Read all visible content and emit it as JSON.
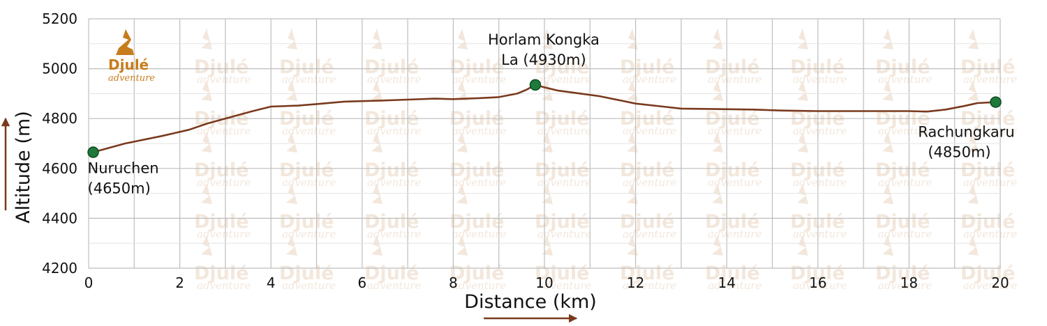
{
  "chart_data": {
    "type": "line",
    "xlabel": "Distance (km)",
    "ylabel": "Altitude (m)",
    "xlim": [
      0,
      20
    ],
    "ylim": [
      4200,
      5200
    ],
    "xticks": [
      0,
      2,
      4,
      6,
      8,
      10,
      12,
      14,
      16,
      18,
      20
    ],
    "yticks": [
      4200,
      4400,
      4600,
      4800,
      5000,
      5200
    ],
    "grid": true,
    "colors": {
      "line": "#7a3a1e",
      "marker": "#1f7a3a",
      "arrow": "#7a3a1e",
      "grid": "#bdbdbd"
    },
    "series": [
      {
        "x": [
          0.1,
          0.8,
          1.6,
          2.2,
          2.6,
          3.2,
          3.6,
          4.0,
          4.6,
          5.0,
          5.6,
          6.4,
          7.0,
          7.6,
          8.0,
          8.6,
          9.0,
          9.4,
          9.6,
          9.8,
          10.0,
          10.3,
          10.8,
          11.2,
          11.6,
          12.0,
          12.6,
          13.0,
          13.8,
          14.6,
          15.2,
          16.0,
          16.8,
          17.6,
          18.0,
          18.4,
          18.8,
          19.2,
          19.5,
          19.9
        ],
        "y": [
          4665,
          4700,
          4730,
          4755,
          4780,
          4810,
          4830,
          4848,
          4852,
          4858,
          4868,
          4872,
          4876,
          4880,
          4878,
          4882,
          4886,
          4900,
          4915,
          4935,
          4925,
          4912,
          4900,
          4890,
          4875,
          4860,
          4848,
          4840,
          4838,
          4836,
          4832,
          4830,
          4830,
          4830,
          4830,
          4828,
          4836,
          4850,
          4862,
          4866
        ]
      }
    ],
    "points": [
      {
        "x": 0.1,
        "y": 4665,
        "label": [
          "Nuruchen",
          "(4650m)"
        ]
      },
      {
        "x": 9.8,
        "y": 4935,
        "label": [
          "Horlam Kongka",
          "La (4930m)"
        ]
      },
      {
        "x": 19.9,
        "y": 4866,
        "label": [
          "Rachungkaru",
          "(4850m)"
        ]
      }
    ]
  },
  "watermark": {
    "brand": "Djulé",
    "sub": "adventure"
  }
}
